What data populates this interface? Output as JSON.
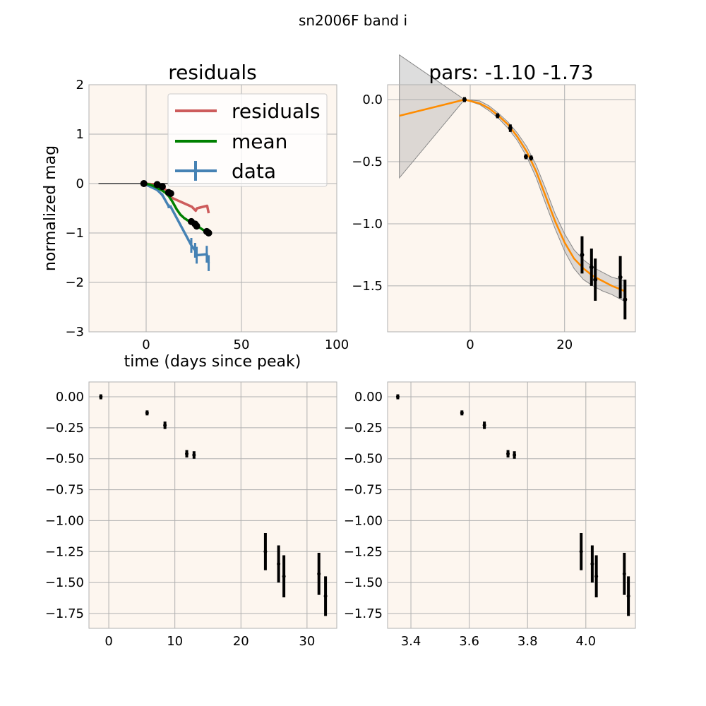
{
  "figure": {
    "suptitle": "sn2006F band i"
  },
  "colors": {
    "panel_bg": "#fdf6ef",
    "grid": "#b0b0b0",
    "residuals": "#cd5c5c",
    "mean": "#008000",
    "data": "#4682b4",
    "fit": "#ff8c00",
    "band": "#a9a9a9",
    "points": "#000000",
    "zero_line": "#666666"
  },
  "chart_data": [
    {
      "panel": "top-left",
      "type": "line",
      "title": "residuals",
      "xlabel": "time (days since peak)",
      "ylabel": "normalized mag",
      "xlim": [
        -30,
        100
      ],
      "ylim": [
        -3,
        2
      ],
      "xticks": [
        0,
        50,
        100
      ],
      "yticks": [
        -3,
        -2,
        -1,
        0,
        1,
        2
      ],
      "xtick_labels": [
        "0",
        "50",
        "100"
      ],
      "ytick_labels": [
        "−3",
        "−2",
        "−1",
        "0",
        "1",
        "2"
      ],
      "grid": true,
      "legend": {
        "placement": "upper right",
        "entries": [
          "residuals",
          "mean",
          "data"
        ]
      },
      "zero_line": {
        "x": [
          -25,
          95
        ],
        "y": 0
      },
      "series": [
        {
          "name": "residuals",
          "x": [
            -1.2,
            6,
            8.5,
            12,
            13,
            24,
            26,
            26.7,
            32,
            32.8
          ],
          "y": [
            0,
            -0.02,
            -0.06,
            -0.2,
            -0.28,
            -0.47,
            -0.55,
            -0.5,
            -0.45,
            -0.6
          ]
        },
        {
          "name": "mean",
          "x": [
            -1.2,
            2,
            5,
            8,
            10,
            12,
            14,
            16,
            18,
            20,
            22,
            24,
            26,
            28,
            30,
            32,
            33
          ],
          "y": [
            0,
            -0.02,
            -0.07,
            -0.13,
            -0.18,
            -0.26,
            -0.38,
            -0.52,
            -0.63,
            -0.7,
            -0.75,
            -0.79,
            -0.84,
            -0.89,
            -0.94,
            -0.98,
            -1.0
          ]
        },
        {
          "name": "data",
          "x": [
            -1.2,
            5.8,
            8.5,
            11.8,
            12.9,
            23.7,
            25.7,
            26.5,
            31.8,
            32.8
          ],
          "y": [
            0,
            -0.13,
            -0.23,
            -0.46,
            -0.47,
            -1.25,
            -1.35,
            -1.45,
            -1.43,
            -1.61
          ],
          "yerr": [
            0.02,
            0.02,
            0.03,
            0.04,
            0.03,
            0.15,
            0.15,
            0.17,
            0.17,
            0.16
          ]
        }
      ],
      "markers": {
        "x": [
          -1.2,
          5.8,
          8.5,
          11.8,
          12.9,
          23.7,
          25.7,
          26.5,
          31.8,
          32.8
        ],
        "y": [
          0,
          -0.02,
          -0.06,
          -0.18,
          -0.2,
          -0.77,
          -0.82,
          -0.86,
          -0.97,
          -1.0
        ]
      }
    },
    {
      "panel": "top-right",
      "type": "line",
      "title": "pars: -1.10 -1.73",
      "xlim": [
        -17.5,
        35
      ],
      "ylim": [
        -1.87,
        0.12
      ],
      "xticks": [
        0,
        20
      ],
      "yticks": [
        -1.5,
        -1.0,
        -0.5,
        0.0
      ],
      "xtick_labels": [
        "0",
        "20"
      ],
      "ytick_labels": [
        "−1.5",
        "−1.0",
        "−0.5",
        "0.0"
      ],
      "grid": true,
      "fit": {
        "x": [
          -15,
          -1.2,
          2,
          4,
          6,
          8,
          10,
          12,
          14,
          16,
          18,
          20,
          22,
          24,
          26,
          28,
          30,
          32,
          33
        ],
        "y": [
          -0.13,
          0,
          -0.03,
          -0.07,
          -0.13,
          -0.2,
          -0.3,
          -0.42,
          -0.58,
          -0.78,
          -0.98,
          -1.15,
          -1.28,
          -1.36,
          -1.42,
          -1.46,
          -1.5,
          -1.53,
          -1.55
        ]
      },
      "band_upper": [
        0.36,
        0,
        -0.01,
        -0.05,
        -0.11,
        -0.18,
        -0.27,
        -0.38,
        -0.53,
        -0.72,
        -0.92,
        -1.08,
        -1.21,
        -1.29,
        -1.35,
        -1.39,
        -1.43,
        -1.45,
        -1.47
      ],
      "band_lower": [
        -0.63,
        0,
        -0.04,
        -0.09,
        -0.15,
        -0.23,
        -0.33,
        -0.46,
        -0.63,
        -0.84,
        -1.04,
        -1.22,
        -1.36,
        -1.45,
        -1.5,
        -1.54,
        -1.57,
        -1.61,
        -1.63
      ],
      "points": {
        "x": [
          -1.2,
          5.8,
          8.5,
          11.8,
          12.9,
          23.7,
          25.7,
          26.5,
          31.8,
          32.8
        ],
        "y": [
          0,
          -0.13,
          -0.23,
          -0.46,
          -0.47,
          -1.25,
          -1.35,
          -1.45,
          -1.43,
          -1.61
        ],
        "yerr": [
          0.02,
          0.02,
          0.03,
          0.02,
          0.02,
          0.15,
          0.15,
          0.17,
          0.17,
          0.16
        ]
      }
    },
    {
      "panel": "bottom-left",
      "type": "scatter",
      "xlim": [
        -3,
        34.5
      ],
      "ylim": [
        -1.87,
        0.12
      ],
      "xticks": [
        0,
        10,
        20,
        30
      ],
      "yticks": [
        0,
        -0.25,
        -0.5,
        -0.75,
        -1.0,
        -1.25,
        -1.5,
        -1.75
      ],
      "xtick_labels": [
        "0",
        "10",
        "20",
        "30"
      ],
      "ytick_labels": [
        "0.00",
        "−0.25",
        "−0.50",
        "−0.75",
        "−1.00",
        "−1.25",
        "−1.50",
        "−1.75"
      ],
      "grid": true,
      "points": {
        "x": [
          -1.2,
          5.8,
          8.5,
          11.8,
          12.9,
          23.7,
          25.7,
          26.5,
          31.8,
          32.8
        ],
        "y": [
          0,
          -0.13,
          -0.23,
          -0.46,
          -0.47,
          -1.25,
          -1.35,
          -1.45,
          -1.43,
          -1.61
        ],
        "yerr": [
          0.02,
          0.02,
          0.03,
          0.03,
          0.03,
          0.15,
          0.15,
          0.17,
          0.17,
          0.16
        ]
      }
    },
    {
      "panel": "bottom-right",
      "type": "scatter",
      "xlim": [
        3.32,
        4.17
      ],
      "ylim": [
        -1.87,
        0.12
      ],
      "xticks": [
        3.4,
        3.6,
        3.8,
        4.0
      ],
      "yticks": [
        0,
        -0.25,
        -0.5,
        -0.75,
        -1.0,
        -1.25,
        -1.5,
        -1.75
      ],
      "xtick_labels": [
        "3.4",
        "3.6",
        "3.8",
        "4.0"
      ],
      "ytick_labels": [
        "0.00",
        "−0.25",
        "−0.50",
        "−0.75",
        "−1.00",
        "−1.25",
        "−1.50",
        "−1.75"
      ],
      "grid": true,
      "points": {
        "x": [
          3.355,
          3.575,
          3.652,
          3.733,
          3.755,
          3.984,
          4.022,
          4.036,
          4.132,
          4.146
        ],
        "y": [
          0,
          -0.13,
          -0.23,
          -0.46,
          -0.47,
          -1.25,
          -1.35,
          -1.45,
          -1.43,
          -1.61
        ],
        "yerr": [
          0.02,
          0.02,
          0.03,
          0.03,
          0.03,
          0.15,
          0.15,
          0.17,
          0.17,
          0.16
        ]
      }
    }
  ]
}
